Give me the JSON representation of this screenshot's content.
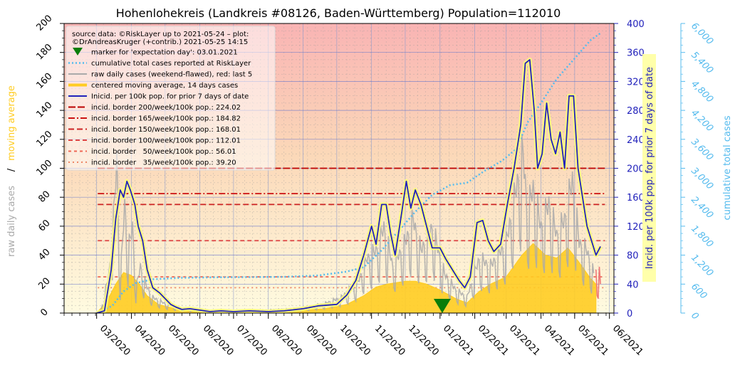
{
  "chart_data": {
    "type": "line",
    "title": "Hohenlohekreis (Landkreis #08126, Baden-Württemberg) Population=112010",
    "x_axis": {
      "type": "date",
      "range": [
        "2020-02-01",
        "2021-06-05"
      ],
      "tick_labels": [
        "03/2020",
        "04/2020",
        "05/2020",
        "06/2020",
        "07/2020",
        "08/2020",
        "09/2020",
        "10/2020",
        "11/2020",
        "12/2020",
        "01/2021",
        "02/2021",
        "03/2021",
        "04/2021",
        "05/2021",
        "06/2021"
      ],
      "tick_dates": [
        "2020-03-01",
        "2020-04-01",
        "2020-05-01",
        "2020-06-01",
        "2020-07-01",
        "2020-08-01",
        "2020-09-01",
        "2020-10-01",
        "2020-11-01",
        "2020-12-01",
        "2021-01-01",
        "2021-02-01",
        "2021-03-01",
        "2021-04-01",
        "2021-05-01",
        "2021-06-01"
      ]
    },
    "y_left": {
      "label_parts": [
        "raw daily cases",
        "/",
        "moving average"
      ],
      "range": [
        0,
        200
      ],
      "ticks": [
        "0",
        "20",
        "40",
        "60",
        "80",
        "100",
        "120",
        "140",
        "160",
        "180",
        "200"
      ]
    },
    "y_right_incidence": {
      "label": "Incid. per 100k pop. for prior 7 days of date",
      "range": [
        0,
        400
      ],
      "ticks": [
        "0",
        "40",
        "80",
        "120",
        "160",
        "200",
        "240",
        "280",
        "320",
        "360",
        "400"
      ]
    },
    "y_right_cumulative": {
      "label": "cumulative total cases",
      "range": [
        0,
        6000
      ],
      "ticks": [
        "0",
        "600",
        "1,200",
        "1,800",
        "2,400",
        "3,000",
        "3,600",
        "4,200",
        "4,800",
        "5,400",
        "6,000"
      ]
    },
    "legend": {
      "placement": "top-left",
      "source_line1": "source data: ©RiskLayer up to 2021-05-24 – plot:",
      "source_line2": "©DrAndreasKruger (+contrib.) 2021-05-25 14:15",
      "entries": [
        {
          "key": "marker",
          "label": "marker for 'expectation day': 03.01.2021",
          "color": "#0a7d0a"
        },
        {
          "key": "cumulative",
          "label": "cumulative total cases reported at RiskLayer",
          "color": "#55bbee"
        },
        {
          "key": "raw",
          "label": "raw daily cases (weekend-flawed), red: last 5",
          "color": "#aaaaaa"
        },
        {
          "key": "avg",
          "label": "centered moving average, 14 days cases",
          "color": "#ffcc22"
        },
        {
          "key": "incidence",
          "label": "Inicid. per 100k pop. for prior 7 days of date",
          "color": "#2222bb"
        },
        {
          "key": "b200",
          "label": "incid. border 200/week/100k pop.: 224.02",
          "color": "#bb0000"
        },
        {
          "key": "b165",
          "label": "incid. border 165/week/100k pop.: 184.82",
          "color": "#cc1111"
        },
        {
          "key": "b150",
          "label": "incid. border 150/week/100k pop.: 168.01",
          "color": "#cc2222"
        },
        {
          "key": "b100",
          "label": "incid. border 100/week/100k pop.: 112.01",
          "color": "#dd4444"
        },
        {
          "key": "b50",
          "label": "incid. border   50/week/100k pop.: 56.01",
          "color": "#ee6655"
        },
        {
          "key": "b35",
          "label": "incid. border   35/week/100k pop.: 39.20",
          "color": "#ee8866"
        }
      ]
    },
    "borders_cases_per_day": [
      {
        "key": "b200",
        "value": 100.0,
        "color": "#bb0000",
        "dash": "10,3"
      },
      {
        "key": "b165",
        "value": 82.5,
        "color": "#cc1111",
        "dash": "9,3,2,3"
      },
      {
        "key": "b150",
        "value": 75.0,
        "color": "#cc2222",
        "dash": "8,4"
      },
      {
        "key": "b100",
        "value": 50.0,
        "color": "#dd4444",
        "dash": "6,4"
      },
      {
        "key": "b50",
        "value": 25.0,
        "color": "#ee6655",
        "dash": "4,4"
      },
      {
        "key": "b35",
        "value": 17.5,
        "color": "#ee8866",
        "dash": "2,4"
      }
    ],
    "expectation_day": "2021-01-03",
    "incidence_series": {
      "name": "Inicid. per 100k pop. for prior 7 days of date",
      "points": [
        [
          "2020-03-01",
          0
        ],
        [
          "2020-03-08",
          3
        ],
        [
          "2020-03-14",
          60
        ],
        [
          "2020-03-18",
          130
        ],
        [
          "2020-03-22",
          170
        ],
        [
          "2020-03-25",
          160
        ],
        [
          "2020-03-28",
          182
        ],
        [
          "2020-03-31",
          170
        ],
        [
          "2020-04-04",
          150
        ],
        [
          "2020-04-07",
          120
        ],
        [
          "2020-04-11",
          100
        ],
        [
          "2020-04-15",
          60
        ],
        [
          "2020-04-20",
          35
        ],
        [
          "2020-04-26",
          28
        ],
        [
          "2020-05-01",
          20
        ],
        [
          "2020-05-06",
          12
        ],
        [
          "2020-05-11",
          8
        ],
        [
          "2020-05-16",
          5
        ],
        [
          "2020-05-23",
          6
        ],
        [
          "2020-06-01",
          4
        ],
        [
          "2020-06-10",
          2
        ],
        [
          "2020-06-20",
          3
        ],
        [
          "2020-07-01",
          2
        ],
        [
          "2020-07-15",
          3
        ],
        [
          "2020-08-01",
          2
        ],
        [
          "2020-08-15",
          3
        ],
        [
          "2020-09-01",
          6
        ],
        [
          "2020-09-15",
          10
        ],
        [
          "2020-10-01",
          12
        ],
        [
          "2020-10-10",
          25
        ],
        [
          "2020-10-18",
          45
        ],
        [
          "2020-10-25",
          80
        ],
        [
          "2020-11-01",
          120
        ],
        [
          "2020-11-05",
          95
        ],
        [
          "2020-11-10",
          150
        ],
        [
          "2020-11-14",
          150
        ],
        [
          "2020-11-18",
          110
        ],
        [
          "2020-11-22",
          80
        ],
        [
          "2020-11-28",
          140
        ],
        [
          "2020-12-02",
          182
        ],
        [
          "2020-12-06",
          145
        ],
        [
          "2020-12-10",
          170
        ],
        [
          "2020-12-15",
          150
        ],
        [
          "2020-12-20",
          120
        ],
        [
          "2020-12-25",
          90
        ],
        [
          "2021-01-01",
          90
        ],
        [
          "2021-01-06",
          75
        ],
        [
          "2021-01-12",
          60
        ],
        [
          "2021-01-18",
          45
        ],
        [
          "2021-01-23",
          35
        ],
        [
          "2021-01-28",
          50
        ],
        [
          "2021-02-03",
          125
        ],
        [
          "2021-02-08",
          128
        ],
        [
          "2021-02-13",
          100
        ],
        [
          "2021-02-18",
          85
        ],
        [
          "2021-02-24",
          95
        ],
        [
          "2021-03-02",
          150
        ],
        [
          "2021-03-08",
          200
        ],
        [
          "2021-03-14",
          260
        ],
        [
          "2021-03-18",
          345
        ],
        [
          "2021-03-22",
          350
        ],
        [
          "2021-03-26",
          280
        ],
        [
          "2021-03-29",
          200
        ],
        [
          "2021-04-02",
          220
        ],
        [
          "2021-04-06",
          290
        ],
        [
          "2021-04-10",
          240
        ],
        [
          "2021-04-14",
          220
        ],
        [
          "2021-04-18",
          250
        ],
        [
          "2021-04-22",
          200
        ],
        [
          "2021-04-26",
          300
        ],
        [
          "2021-04-30",
          300
        ],
        [
          "2021-05-04",
          200
        ],
        [
          "2021-05-08",
          160
        ],
        [
          "2021-05-12",
          120
        ],
        [
          "2021-05-16",
          100
        ],
        [
          "2021-05-20",
          80
        ],
        [
          "2021-05-24",
          92
        ]
      ]
    },
    "moving_average_series": {
      "name": "centered moving average, 14 days cases",
      "points": [
        [
          "2020-03-01",
          0
        ],
        [
          "2020-03-10",
          8
        ],
        [
          "2020-03-18",
          20
        ],
        [
          "2020-03-25",
          28
        ],
        [
          "2020-04-01",
          26
        ],
        [
          "2020-04-08",
          20
        ],
        [
          "2020-04-15",
          12
        ],
        [
          "2020-04-25",
          6
        ],
        [
          "2020-05-10",
          3
        ],
        [
          "2020-06-01",
          1
        ],
        [
          "2020-07-01",
          1
        ],
        [
          "2020-08-01",
          1
        ],
        [
          "2020-09-01",
          2
        ],
        [
          "2020-09-20",
          3
        ],
        [
          "2020-10-10",
          6
        ],
        [
          "2020-10-25",
          12
        ],
        [
          "2020-11-05",
          18
        ],
        [
          "2020-11-15",
          20
        ],
        [
          "2020-12-01",
          22
        ],
        [
          "2020-12-10",
          22
        ],
        [
          "2020-12-20",
          20
        ],
        [
          "2021-01-01",
          16
        ],
        [
          "2021-01-15",
          10
        ],
        [
          "2021-01-25",
          7
        ],
        [
          "2021-02-05",
          15
        ],
        [
          "2021-02-15",
          20
        ],
        [
          "2021-03-01",
          25
        ],
        [
          "2021-03-15",
          40
        ],
        [
          "2021-03-25",
          48
        ],
        [
          "2021-04-05",
          40
        ],
        [
          "2021-04-15",
          38
        ],
        [
          "2021-04-25",
          45
        ],
        [
          "2021-05-05",
          35
        ],
        [
          "2021-05-15",
          24
        ],
        [
          "2021-05-20",
          20
        ]
      ]
    },
    "raw_daily_series": {
      "name": "raw daily cases (weekend-flawed), red: last 5",
      "points": [
        [
          "2020-03-05",
          2
        ],
        [
          "2020-03-12",
          25
        ],
        [
          "2020-03-16",
          60
        ],
        [
          "2020-03-19",
          98
        ],
        [
          "2020-03-22",
          20
        ],
        [
          "2020-03-26",
          70
        ],
        [
          "2020-03-29",
          40
        ],
        [
          "2020-04-02",
          55
        ],
        [
          "2020-04-05",
          15
        ],
        [
          "2020-04-09",
          30
        ],
        [
          "2020-04-14",
          18
        ],
        [
          "2020-04-20",
          10
        ],
        [
          "2020-05-01",
          6
        ],
        [
          "2020-05-15",
          3
        ],
        [
          "2020-06-01",
          2
        ],
        [
          "2020-07-01",
          1
        ],
        [
          "2020-08-01",
          2
        ],
        [
          "2020-09-01",
          3
        ],
        [
          "2020-09-20",
          6
        ],
        [
          "2020-10-05",
          10
        ],
        [
          "2020-10-20",
          20
        ],
        [
          "2020-10-28",
          35
        ],
        [
          "2020-11-05",
          40
        ],
        [
          "2020-11-12",
          55
        ],
        [
          "2020-11-20",
          30
        ],
        [
          "2020-12-01",
          45
        ],
        [
          "2020-12-08",
          60
        ],
        [
          "2020-12-15",
          40
        ],
        [
          "2020-12-25",
          55
        ],
        [
          "2021-01-05",
          25
        ],
        [
          "2021-01-15",
          15
        ],
        [
          "2021-01-25",
          10
        ],
        [
          "2021-02-05",
          35
        ],
        [
          "2021-02-15",
          30
        ],
        [
          "2021-03-01",
          45
        ],
        [
          "2021-03-10",
          80
        ],
        [
          "2021-03-16",
          102
        ],
        [
          "2021-03-20",
          65
        ],
        [
          "2021-03-25",
          80
        ],
        [
          "2021-04-01",
          55
        ],
        [
          "2021-04-08",
          70
        ],
        [
          "2021-04-15",
          50
        ],
        [
          "2021-04-22",
          60
        ],
        [
          "2021-04-29",
          85
        ],
        [
          "2021-05-05",
          45
        ],
        [
          "2021-05-12",
          40
        ],
        [
          "2021-05-18",
          25
        ]
      ],
      "last5": [
        [
          "2021-05-20",
          30
        ],
        [
          "2021-05-21",
          12
        ],
        [
          "2021-05-22",
          10
        ],
        [
          "2021-05-23",
          32
        ],
        [
          "2021-05-24",
          20
        ]
      ]
    },
    "cumulative_series": {
      "name": "cumulative total cases reported at RiskLayer",
      "points": [
        [
          "2020-03-01",
          0
        ],
        [
          "2020-03-15",
          150
        ],
        [
          "2020-03-25",
          450
        ],
        [
          "2020-04-05",
          620
        ],
        [
          "2020-04-20",
          700
        ],
        [
          "2020-05-15",
          730
        ],
        [
          "2020-06-15",
          740
        ],
        [
          "2020-07-15",
          745
        ],
        [
          "2020-08-15",
          750
        ],
        [
          "2020-09-15",
          780
        ],
        [
          "2020-10-10",
          860
        ],
        [
          "2020-10-25",
          950
        ],
        [
          "2020-11-10",
          1300
        ],
        [
          "2020-11-25",
          1700
        ],
        [
          "2020-12-10",
          2100
        ],
        [
          "2020-12-25",
          2450
        ],
        [
          "2021-01-10",
          2650
        ],
        [
          "2021-01-25",
          2700
        ],
        [
          "2021-02-10",
          2950
        ],
        [
          "2021-02-25",
          3150
        ],
        [
          "2021-03-10",
          3400
        ],
        [
          "2021-03-20",
          3950
        ],
        [
          "2021-04-01",
          4350
        ],
        [
          "2021-04-15",
          4850
        ],
        [
          "2021-04-30",
          5250
        ],
        [
          "2021-05-15",
          5650
        ],
        [
          "2021-05-24",
          5800
        ]
      ]
    }
  }
}
